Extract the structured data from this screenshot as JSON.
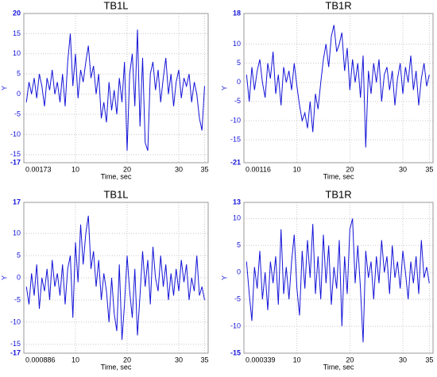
{
  "chart_data": [
    {
      "type": "line",
      "title": "TB1L",
      "xlabel": "Time, sec",
      "ylabel": "Y",
      "color": "#1414d8",
      "x": [
        0.5,
        1,
        1.5,
        2,
        2.5,
        3,
        3.5,
        4,
        4.5,
        5,
        5.5,
        6,
        6.5,
        7,
        7.5,
        8,
        8.5,
        9,
        9.5,
        10,
        10.5,
        11,
        11.5,
        12,
        12.5,
        13,
        13.5,
        14,
        14.5,
        15,
        15.5,
        16,
        16.5,
        17,
        17.5,
        18,
        18.5,
        19,
        19.5,
        20,
        20.5,
        21,
        21.5,
        22,
        22.5,
        23,
        23.5,
        24,
        24.5,
        25,
        25.5,
        26,
        26.5,
        27,
        27.5,
        28,
        28.5,
        29,
        29.5,
        30,
        30.5,
        31,
        31.5,
        32,
        32.5,
        33,
        33.5,
        34,
        34.5,
        35
      ],
      "values": [
        -2,
        3,
        0,
        4,
        -1,
        5,
        2,
        -3,
        4,
        1,
        6,
        0,
        3,
        -2,
        5,
        -3,
        8,
        15,
        2,
        10,
        -1,
        6,
        3,
        8,
        12,
        4,
        7,
        0,
        5,
        -6,
        -2,
        -7,
        3,
        -4,
        1,
        -5,
        4,
        -2,
        8,
        -14,
        5,
        10,
        -3,
        16,
        -8,
        9,
        -12,
        -14,
        5,
        8,
        1,
        6,
        -2,
        4,
        9,
        0,
        5,
        -3,
        3,
        6,
        -1,
        4,
        2,
        5,
        -2,
        3,
        0,
        -6,
        -9,
        2
      ],
      "xlim": [
        0.00173,
        35.7
      ],
      "xticks": [
        0.00173,
        10,
        20,
        30,
        35
      ],
      "ylim": [
        -17,
        20
      ],
      "yticks": [
        -17,
        -15,
        -10,
        -5,
        0,
        5,
        10,
        15,
        20
      ],
      "grid": true
    },
    {
      "type": "line",
      "title": "TB1R",
      "xlabel": "Time, sec",
      "ylabel": "Y",
      "color": "#1414d8",
      "x": [
        0.5,
        1,
        1.5,
        2,
        2.5,
        3,
        3.5,
        4,
        4.5,
        5,
        5.5,
        6,
        6.5,
        7,
        7.5,
        8,
        8.5,
        9,
        9.5,
        10,
        10.5,
        11,
        11.5,
        12,
        12.5,
        13,
        13.5,
        14,
        14.5,
        15,
        15.5,
        16,
        16.5,
        17,
        17.5,
        18,
        18.5,
        19,
        19.5,
        20,
        20.5,
        21,
        21.5,
        22,
        22.5,
        23,
        23.5,
        24,
        24.5,
        25,
        25.5,
        26,
        26.5,
        27,
        27.5,
        28,
        28.5,
        29,
        29.5,
        30,
        30.5,
        31,
        31.5,
        32,
        32.5,
        33,
        33.5,
        34,
        34.5,
        35
      ],
      "values": [
        2,
        -5,
        4,
        -2,
        3,
        6,
        0,
        -4,
        5,
        1,
        8,
        -3,
        2,
        -6,
        4,
        0,
        3,
        -2,
        5,
        -1,
        -6,
        -10,
        -8,
        -12,
        -5,
        -13,
        -3,
        -7,
        0,
        6,
        10,
        4,
        12,
        15,
        8,
        10,
        13,
        3,
        9,
        -2,
        6,
        0,
        5,
        -4,
        7,
        -17,
        3,
        -3,
        5,
        0,
        6,
        -5,
        2,
        4,
        -2,
        3,
        -6,
        1,
        5,
        -3,
        4,
        0,
        7,
        -2,
        3,
        -6,
        1,
        5,
        -1,
        2
      ],
      "xlim": [
        0.00116,
        35.7
      ],
      "xticks": [
        0.00116,
        10,
        20,
        30,
        35
      ],
      "ylim": [
        -21,
        18
      ],
      "yticks": [
        -21,
        -15,
        -10,
        -5,
        0,
        5,
        10,
        18
      ],
      "grid": true
    },
    {
      "type": "line",
      "title": "TB1L",
      "xlabel": "Time, sec",
      "ylabel": "Y",
      "color": "#1414d8",
      "x": [
        0.5,
        1,
        1.5,
        2,
        2.5,
        3,
        3.5,
        4,
        4.5,
        5,
        5.5,
        6,
        6.5,
        7,
        7.5,
        8,
        8.5,
        9,
        9.5,
        10,
        10.5,
        11,
        11.5,
        12,
        12.5,
        13,
        13.5,
        14,
        14.5,
        15,
        15.5,
        16,
        16.5,
        17,
        17.5,
        18,
        18.5,
        19,
        19.5,
        20,
        20.5,
        21,
        21.5,
        22,
        22.5,
        23,
        23.5,
        24,
        24.5,
        25,
        25.5,
        26,
        26.5,
        27,
        27.5,
        28,
        28.5,
        29,
        29.5,
        30,
        30.5,
        31,
        31.5,
        32,
        32.5,
        33,
        33.5,
        34,
        34.5,
        35
      ],
      "values": [
        -2,
        -6,
        1,
        -4,
        3,
        -7,
        0,
        -3,
        2,
        -5,
        4,
        -2,
        1,
        -4,
        3,
        -6,
        2,
        5,
        -9,
        8,
        -1,
        12,
        3,
        10,
        14,
        2,
        6,
        -2,
        4,
        -5,
        1,
        -3,
        -10,
        0,
        -8,
        -12,
        3,
        -14,
        -6,
        5,
        -3,
        -9,
        2,
        -13,
        -4,
        6,
        -2,
        4,
        -6,
        7,
        0,
        -3,
        5,
        -2,
        3,
        -5,
        1,
        -4,
        2,
        -3,
        4,
        -1,
        3,
        -5,
        0,
        -3,
        5,
        -4,
        -2,
        -5
      ],
      "xlim": [
        0.000886,
        35.7
      ],
      "xticks": [
        0.000886,
        10,
        20,
        30,
        35
      ],
      "ylim": [
        -17,
        17
      ],
      "yticks": [
        -17,
        -15,
        -10,
        -5,
        0,
        5,
        10,
        17
      ],
      "grid": true
    },
    {
      "type": "line",
      "title": "TB1R",
      "xlabel": "Time, sec",
      "ylabel": "Y",
      "color": "#1414d8",
      "x": [
        0.5,
        1,
        1.5,
        2,
        2.5,
        3,
        3.5,
        4,
        4.5,
        5,
        5.5,
        6,
        6.5,
        7,
        7.5,
        8,
        8.5,
        9,
        9.5,
        10,
        10.5,
        11,
        11.5,
        12,
        12.5,
        13,
        13.5,
        14,
        14.5,
        15,
        15.5,
        16,
        16.5,
        17,
        17.5,
        18,
        18.5,
        19,
        19.5,
        20,
        20.5,
        21,
        21.5,
        22,
        22.5,
        23,
        23.5,
        24,
        24.5,
        25,
        25.5,
        26,
        26.5,
        27,
        27.5,
        28,
        28.5,
        29,
        29.5,
        30,
        30.5,
        31,
        31.5,
        32,
        32.5,
        33,
        33.5,
        34,
        34.5,
        35
      ],
      "values": [
        2,
        -4,
        -9,
        1,
        -3,
        4,
        -5,
        0,
        -7,
        2,
        -2,
        3,
        -6,
        8,
        -4,
        1,
        -5,
        2,
        7,
        -3,
        -8,
        4,
        -3,
        6,
        -1,
        9,
        -4,
        3,
        -5,
        7,
        -2,
        5,
        -6,
        1,
        -3,
        6,
        -10,
        3,
        -4,
        8,
        10,
        -2,
        5,
        -3,
        -13,
        4,
        -1,
        2,
        -5,
        3,
        -2,
        6,
        0,
        3,
        -4,
        5,
        -1,
        2,
        -3,
        4,
        0,
        -5,
        2,
        -2,
        3,
        -4,
        6,
        -1,
        1,
        -2
      ],
      "xlim": [
        0.000339,
        35.7
      ],
      "xticks": [
        0.000339,
        10,
        20,
        30,
        35
      ],
      "ylim": [
        -15,
        13
      ],
      "yticks": [
        -15,
        -10,
        -5,
        0,
        5,
        10,
        13
      ],
      "grid": true
    }
  ]
}
